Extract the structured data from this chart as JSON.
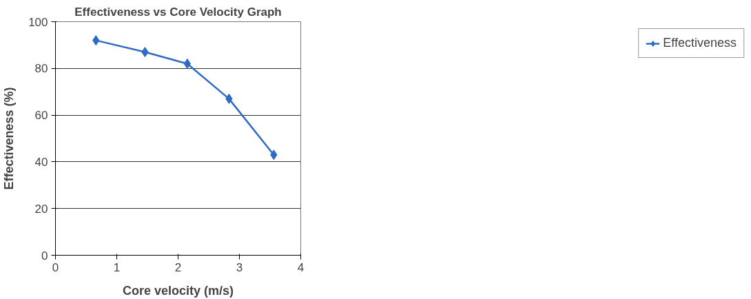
{
  "chart_data": {
    "type": "line",
    "title": "Effectiveness vs Core Velocity Graph",
    "xlabel": "Core velocity (m/s)",
    "ylabel": "Effectiveness (%)",
    "x": [
      0.66,
      1.46,
      2.15,
      2.83,
      3.56
    ],
    "series": [
      {
        "name": "Effectiveness",
        "color": "#2e6bc4",
        "values": [
          92,
          87,
          82,
          67,
          43
        ]
      }
    ],
    "xlim": [
      0,
      4
    ],
    "xticks": [
      0,
      1,
      2,
      3,
      4
    ],
    "ylim": [
      0,
      100
    ],
    "yticks": [
      0,
      20,
      40,
      60,
      80,
      100
    ],
    "grid": "y",
    "legend": "right",
    "marker": "diamond",
    "line_style": "solid"
  }
}
